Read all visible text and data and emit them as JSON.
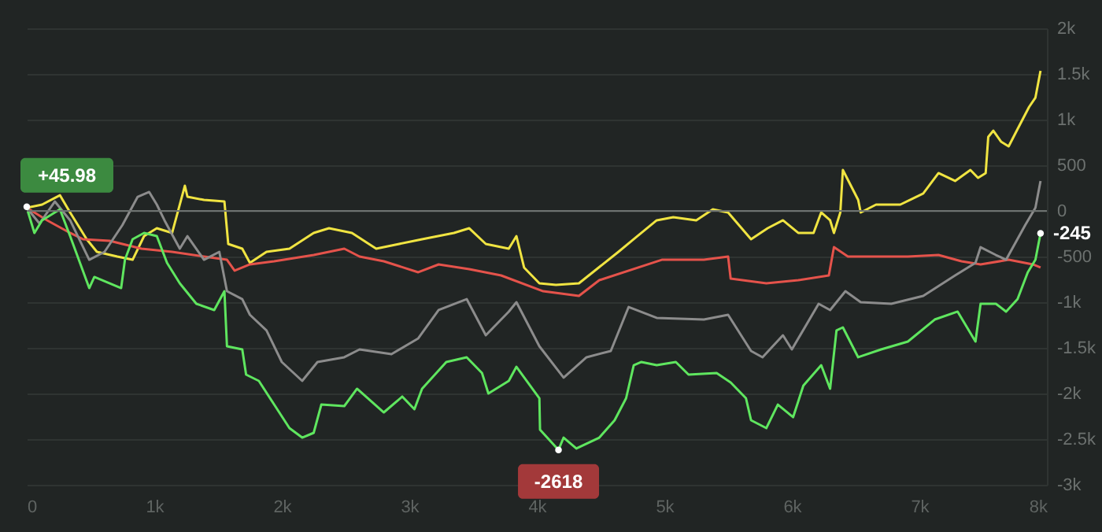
{
  "chart_data": {
    "type": "line",
    "x": [
      0,
      60,
      120,
      260,
      340,
      490,
      530,
      740,
      770,
      830,
      920,
      1020,
      1100,
      1200,
      1330,
      1470,
      1550,
      1570,
      1690,
      1720,
      1820,
      1940,
      2060,
      2160,
      2250,
      2310,
      2490,
      2590,
      2800,
      2945,
      3040,
      3100,
      3290,
      3450,
      3570,
      3620,
      3780,
      3840,
      4020,
      4025,
      4170,
      4210,
      4310,
      4490,
      4610,
      4700,
      4760,
      4820,
      4940,
      5090,
      5190,
      5410,
      5520,
      5640,
      5680,
      5800,
      5890,
      6010,
      6090,
      6230,
      6300,
      6350,
      6400,
      6520,
      6700,
      6910,
      7120,
      7300,
      7440,
      7480,
      7600,
      7680,
      7770,
      7850,
      7910,
      7950
    ],
    "xlim": [
      0,
      8000
    ],
    "ylim": [
      -3000,
      2000
    ],
    "xticks": [
      {
        "value": 0,
        "label": "0"
      },
      {
        "value": 1000,
        "label": "1k"
      },
      {
        "value": 2000,
        "label": "2k"
      },
      {
        "value": 3000,
        "label": "3k"
      },
      {
        "value": 4000,
        "label": "4k"
      },
      {
        "value": 5000,
        "label": "5k"
      },
      {
        "value": 6000,
        "label": "6k"
      },
      {
        "value": 7000,
        "label": "7k"
      },
      {
        "value": 8000,
        "label": "8k"
      }
    ],
    "yticks": [
      {
        "value": -3000,
        "label": "-3k"
      },
      {
        "value": -2500,
        "label": "-2.5k"
      },
      {
        "value": -2000,
        "label": "-2k"
      },
      {
        "value": -1500,
        "label": "-1.5k"
      },
      {
        "value": -1000,
        "label": "-1k"
      },
      -500,
      0,
      500,
      {
        "value": 1000,
        "label": "1k"
      },
      {
        "value": 1500,
        "label": "1.5k"
      },
      {
        "value": 2000,
        "label": "2k"
      }
    ],
    "grid": "y",
    "marker": "none",
    "line_style": "solid",
    "ref_lines": [
      {
        "axis": "y",
        "value": 0,
        "color": "#6e7371"
      }
    ],
    "series": [
      {
        "color": "#f0e442",
        "x": [
          0,
          120,
          260,
          340,
          470,
          550,
          710,
          830,
          920,
          1020,
          1140,
          1240,
          1260,
          1390,
          1550,
          1580,
          1690,
          1750,
          1880,
          2060,
          2250,
          2370,
          2550,
          2740,
          2920,
          3100,
          3350,
          3470,
          3600,
          3780,
          3840,
          3900,
          4020,
          4150,
          4330,
          4640,
          4760,
          4940,
          5070,
          5250,
          5380,
          5500,
          5680,
          5810,
          5930,
          6050,
          6170,
          6230,
          6300,
          6330,
          6380,
          6400,
          6520,
          6540,
          6660,
          6850,
          7030,
          7150,
          7280,
          7400,
          7460,
          7520,
          7540,
          7580,
          7640,
          7700,
          7770,
          7860,
          7910,
          7950
        ],
        "values": [
          34,
          69,
          172,
          -17,
          -310,
          -448,
          -500,
          -535,
          -276,
          -190,
          -241,
          276,
          155,
          120,
          103,
          -362,
          -414,
          -569,
          -448,
          -414,
          -241,
          -190,
          -241,
          -414,
          -362,
          -310,
          -241,
          -190,
          -362,
          -414,
          -276,
          -620,
          -793,
          -810,
          -793,
          -448,
          -310,
          -103,
          -69,
          -103,
          17,
          -17,
          -310,
          -190,
          -103,
          -241,
          -241,
          -17,
          -103,
          -241,
          -17,
          448,
          121,
          -17,
          69,
          69,
          190,
          414,
          328,
          448,
          362,
          414,
          810,
          879,
          759,
          707,
          897,
          1138,
          1241,
          1534
        ]
      },
      {
        "color": "#e5534b",
        "x": [
          0,
          160,
          340,
          440,
          650,
          900,
          1140,
          1390,
          1570,
          1630,
          1750,
          1940,
          2250,
          2490,
          2610,
          2800,
          3070,
          3230,
          3470,
          3720,
          4050,
          4330,
          4490,
          4980,
          5310,
          5500,
          5520,
          5800,
          6050,
          6290,
          6330,
          6440,
          6660,
          6910,
          7150,
          7330,
          7480,
          7700,
          7890,
          7950
        ],
        "values": [
          34,
          -103,
          -241,
          -310,
          -328,
          -414,
          -448,
          -500,
          -535,
          -655,
          -586,
          -552,
          -483,
          -414,
          -500,
          -552,
          -672,
          -586,
          -638,
          -707,
          -880,
          -931,
          -759,
          -535,
          -535,
          -500,
          -741,
          -793,
          -759,
          -707,
          -397,
          -500,
          -500,
          -500,
          -483,
          -552,
          -586,
          -535,
          -586,
          -620
        ]
      },
      {
        "color": "#8c8c8c",
        "x": [
          0,
          100,
          220,
          340,
          490,
          610,
          750,
          870,
          960,
          1020,
          1080,
          1200,
          1260,
          1390,
          1510,
          1570,
          1690,
          1750,
          1880,
          2000,
          2160,
          2280,
          2490,
          2610,
          2860,
          3070,
          3230,
          3450,
          3600,
          3780,
          3840,
          4020,
          4210,
          4390,
          4580,
          4720,
          4940,
          5310,
          5500,
          5680,
          5770,
          5930,
          6000,
          6210,
          6300,
          6420,
          6540,
          6780,
          7030,
          7280,
          7440,
          7480,
          7600,
          7680,
          7830,
          7910,
          7950
        ],
        "values": [
          34,
          -138,
          103,
          -103,
          -535,
          -448,
          -155,
          155,
          207,
          69,
          -103,
          -414,
          -276,
          -535,
          -448,
          -879,
          -966,
          -1138,
          -1310,
          -1655,
          -1862,
          -1655,
          -1603,
          -1517,
          -1569,
          -1396,
          -1086,
          -966,
          -1362,
          -1103,
          -1000,
          -1483,
          -1827,
          -1603,
          -1534,
          -1052,
          -1172,
          -1190,
          -1138,
          -1534,
          -1603,
          -1362,
          -1517,
          -1017,
          -1086,
          -879,
          -1000,
          -1017,
          -931,
          -707,
          -569,
          -397,
          -483,
          -535,
          -155,
          34,
          328
        ]
      },
      {
        "color": "#5fe65f",
        "values": [
          34,
          -241,
          -103,
          17,
          -276,
          -845,
          -724,
          -845,
          -535,
          -310,
          -241,
          -276,
          -569,
          -793,
          -1017,
          -1086,
          -879,
          -1483,
          -1517,
          -1793,
          -1862,
          -2121,
          -2379,
          -2483,
          -2431,
          -2121,
          -2138,
          -1948,
          -2207,
          -2034,
          -2172,
          -1948,
          -1655,
          -1603,
          -1776,
          -2000,
          -1862,
          -1707,
          -2052,
          -2396,
          -2618,
          -2483,
          -2603,
          -2483,
          -2293,
          -2052,
          -1690,
          -1655,
          -1690,
          -1655,
          -1793,
          -1776,
          -1879,
          -2052,
          -2293,
          -2379,
          -2121,
          -2259,
          -1914,
          -1690,
          -1948,
          -1310,
          -1276,
          -1603,
          -1517,
          -1431,
          -1190,
          -1103,
          -1431,
          -1017,
          -1017,
          -1103,
          -966,
          -672,
          -535,
          -245
        ]
      }
    ],
    "annotations": [
      {
        "text": "+45.98",
        "x": 0,
        "y": 45.98
      },
      {
        "text": "-2618",
        "x": 4170,
        "y": -2618
      },
      {
        "text": "-245",
        "x": 7950,
        "y": -245
      }
    ]
  }
}
